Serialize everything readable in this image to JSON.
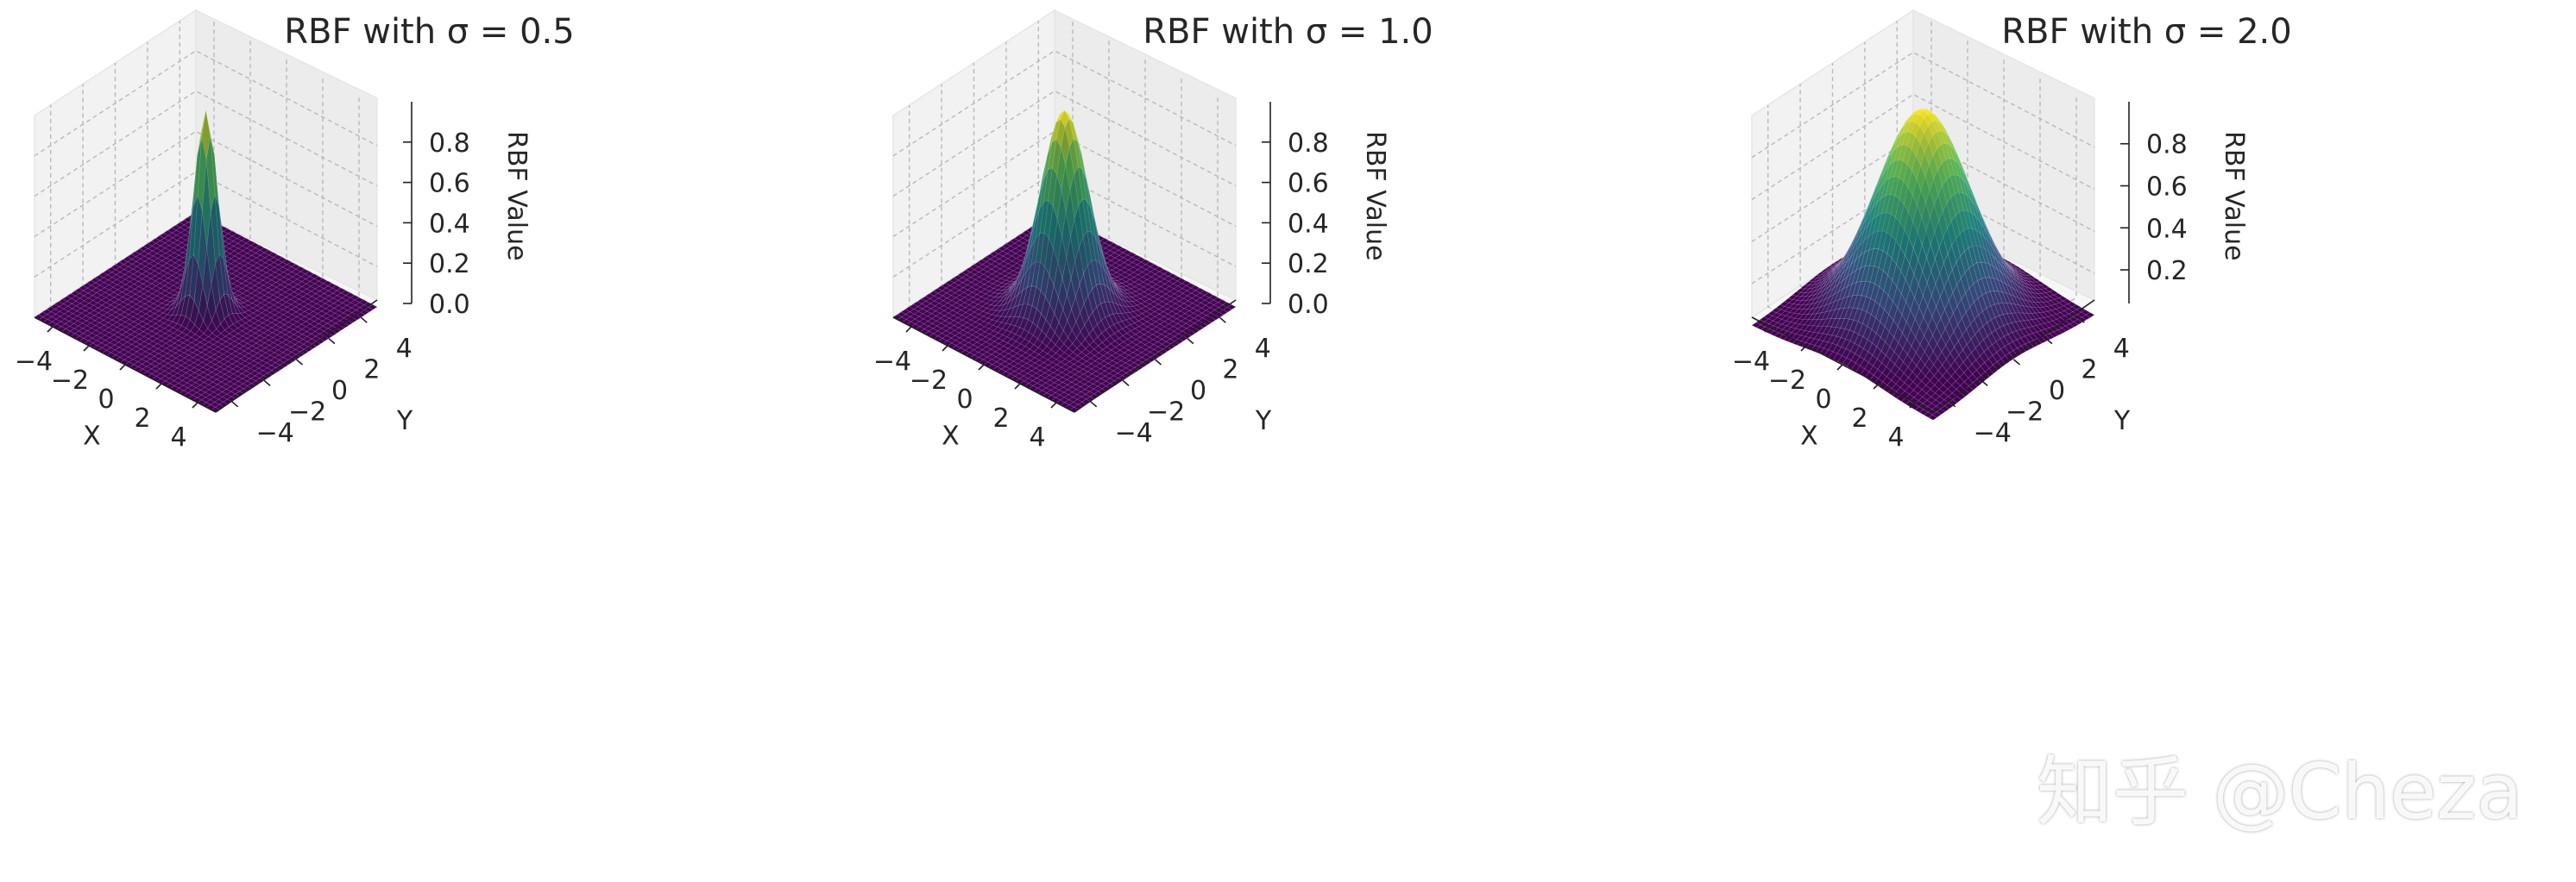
{
  "figure": {
    "watermark": "知乎 @Cheza",
    "colormap": "viridis",
    "colormap_stops": [
      "#440154",
      "#3b528b",
      "#21918c",
      "#5ec962",
      "#fde725"
    ]
  },
  "chart_data": [
    {
      "type": "surface3d",
      "title": "RBF with σ = 0.5",
      "function": "exp(-(x^2+y^2)/(2*sigma^2))",
      "sigma": 0.5,
      "xlabel": "X",
      "ylabel": "Y",
      "zlabel": "RBF Value",
      "xlim": [
        -5,
        5
      ],
      "ylim": [
        -5,
        5
      ],
      "zlim": [
        0,
        1
      ],
      "xticks": [
        "−4",
        "−2",
        "0",
        "2",
        "4"
      ],
      "yticks": [
        "−4",
        "−2",
        "0",
        "2",
        "4"
      ],
      "zticks": [
        "0.0",
        "0.2",
        "0.4",
        "0.6",
        "0.8"
      ],
      "grid": true
    },
    {
      "type": "surface3d",
      "title": "RBF with σ = 1.0",
      "function": "exp(-(x^2+y^2)/(2*sigma^2))",
      "sigma": 1.0,
      "xlabel": "X",
      "ylabel": "Y",
      "zlabel": "RBF Value",
      "xlim": [
        -5,
        5
      ],
      "ylim": [
        -5,
        5
      ],
      "zlim": [
        0,
        1
      ],
      "xticks": [
        "−4",
        "−2",
        "0",
        "2",
        "4"
      ],
      "yticks": [
        "−4",
        "−2",
        "0",
        "2",
        "4"
      ],
      "zticks": [
        "0.0",
        "0.2",
        "0.4",
        "0.6",
        "0.8"
      ],
      "grid": true
    },
    {
      "type": "surface3d",
      "title": "RBF with σ = 2.0",
      "function": "exp(-(x^2+y^2)/(2*sigma^2))",
      "sigma": 2.0,
      "xlabel": "X",
      "ylabel": "Y",
      "zlabel": "RBF Value",
      "xlim": [
        -5,
        5
      ],
      "ylim": [
        -5,
        5
      ],
      "zlim": [
        0.04,
        1
      ],
      "xticks": [
        "−4",
        "−2",
        "0",
        "2",
        "4"
      ],
      "yticks": [
        "−4",
        "−2",
        "0",
        "2",
        "4"
      ],
      "zticks": [
        "0.2",
        "0.4",
        "0.6",
        "0.8"
      ],
      "grid": true
    }
  ]
}
